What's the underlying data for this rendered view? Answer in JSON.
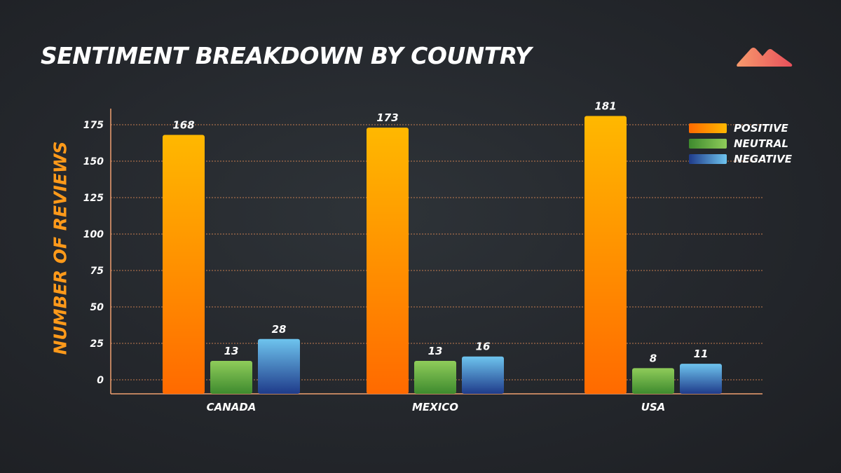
{
  "title": "SENTIMENT BREAKDOWN BY COUNTRY",
  "logo": {
    "icon": "mountain-logo-icon",
    "colors": [
      "#f79a6c",
      "#e8505b"
    ]
  },
  "colors": {
    "positive": [
      "#ffb800",
      "#ff6a00"
    ],
    "neutral": [
      "#8fcc5a",
      "#3e8a2e"
    ],
    "negative": [
      "#6ec4ee",
      "#1f3b8a"
    ],
    "axis": "#f0a070",
    "grid": "#e08a55",
    "ylabel": "#ff9a1a"
  },
  "legend": {
    "items": [
      {
        "label": "POSITIVE",
        "series": "positive"
      },
      {
        "label": "NEUTRAL",
        "series": "neutral"
      },
      {
        "label": "NEGATIVE",
        "series": "negative"
      }
    ]
  },
  "chart_data": {
    "type": "bar",
    "title": "SENTIMENT BREAKDOWN BY COUNTRY",
    "xlabel": "",
    "ylabel": "NUMBER OF REVIEWS",
    "categories": [
      "CANADA",
      "MEXICO",
      "USA"
    ],
    "series": [
      {
        "name": "POSITIVE",
        "key": "positive",
        "values": [
          168,
          173,
          181
        ]
      },
      {
        "name": "NEUTRAL",
        "key": "neutral",
        "values": [
          13,
          13,
          8
        ]
      },
      {
        "name": "NEGATIVE",
        "key": "negative",
        "values": [
          28,
          16,
          11
        ]
      }
    ],
    "yticks": [
      0,
      25,
      50,
      75,
      100,
      125,
      150,
      175
    ],
    "ylim": [
      0,
      190
    ],
    "grid": true,
    "legend_position": "top-right"
  }
}
